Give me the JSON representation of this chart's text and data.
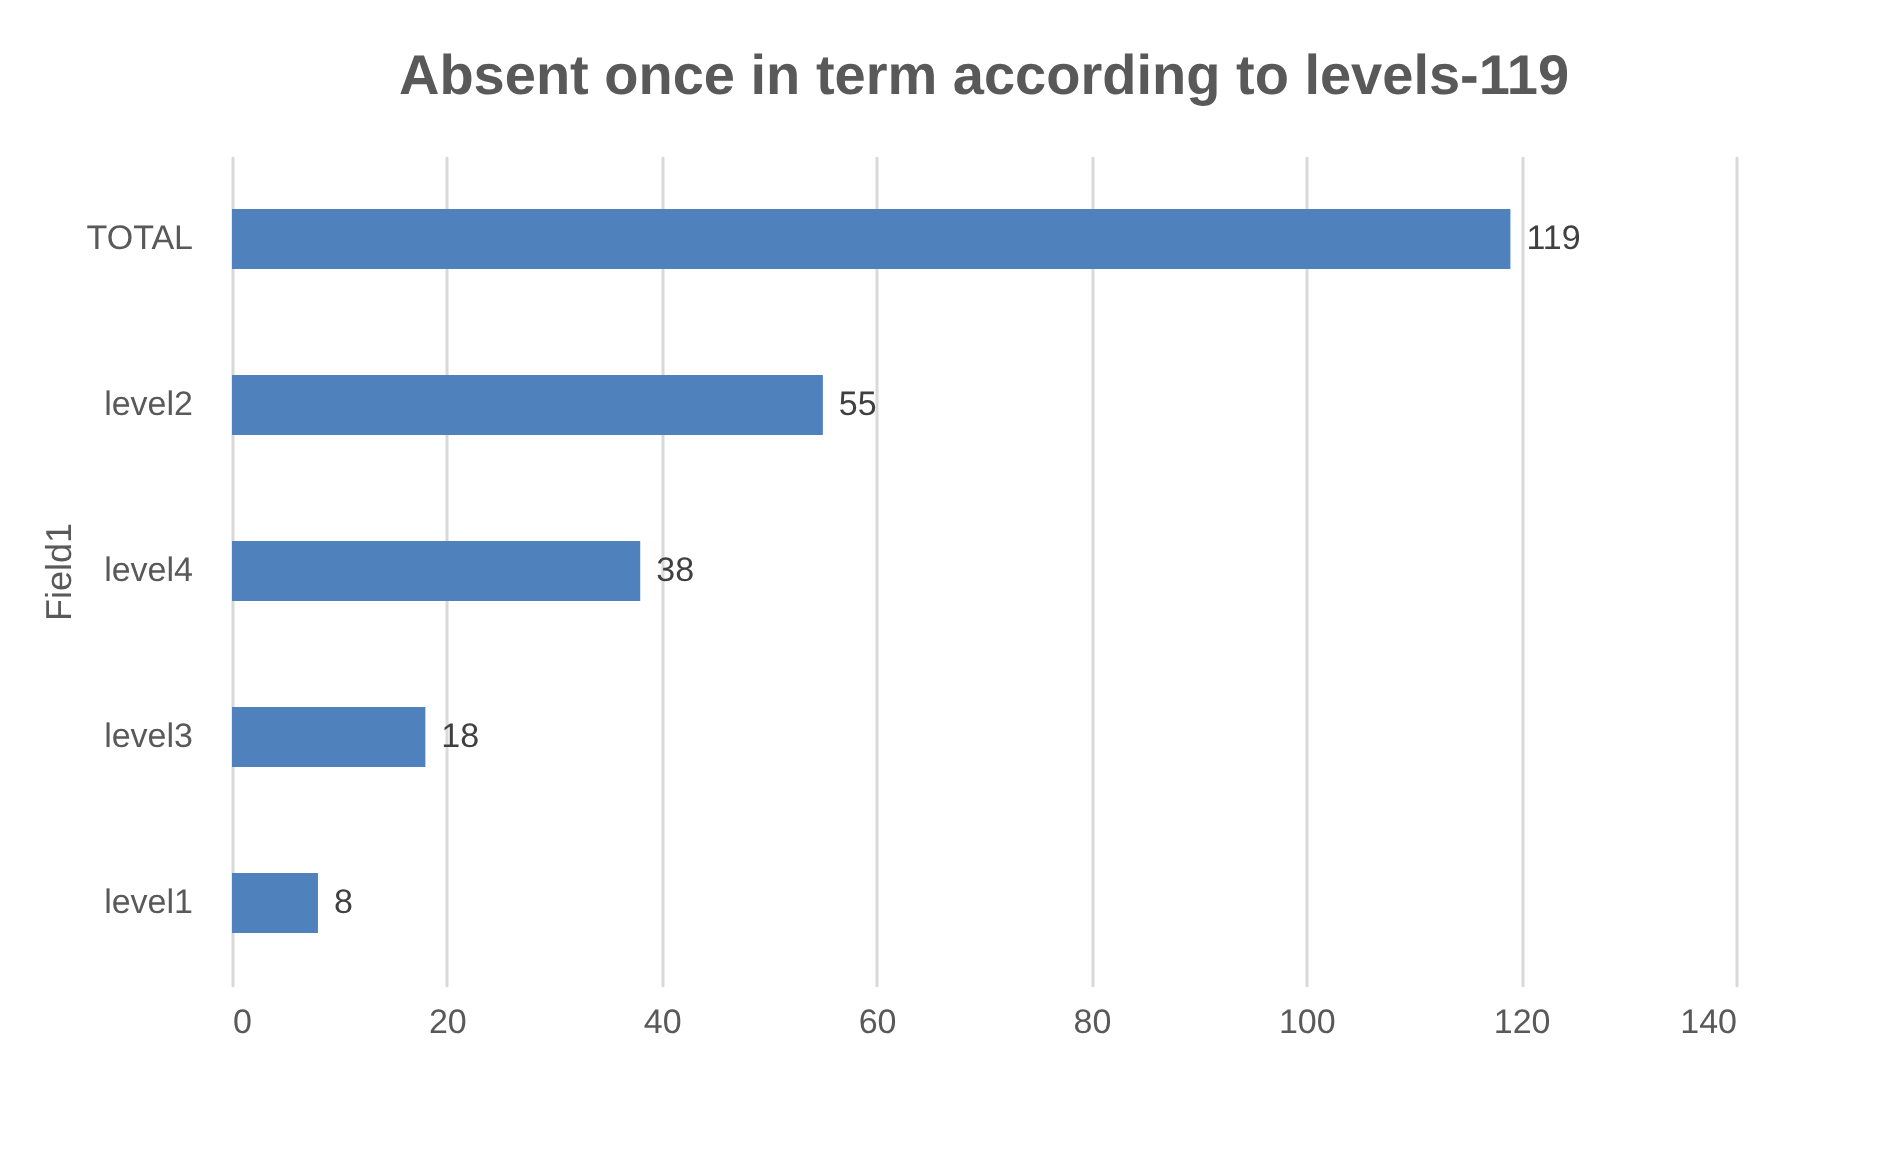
{
  "chart_data": {
    "type": "bar",
    "orientation": "horizontal",
    "title": "Absent once in term according to levels-119",
    "ylabel": "Field1",
    "categories": [
      "TOTAL",
      "level2",
      "level4",
      "level3",
      "level1"
    ],
    "values": [
      119,
      55,
      38,
      18,
      8
    ],
    "color": "#4f81bd",
    "xlim": [
      0,
      140
    ],
    "xticks": [
      0,
      20,
      40,
      60,
      80,
      100,
      120,
      140
    ],
    "grid": "x",
    "data_labels": true
  }
}
